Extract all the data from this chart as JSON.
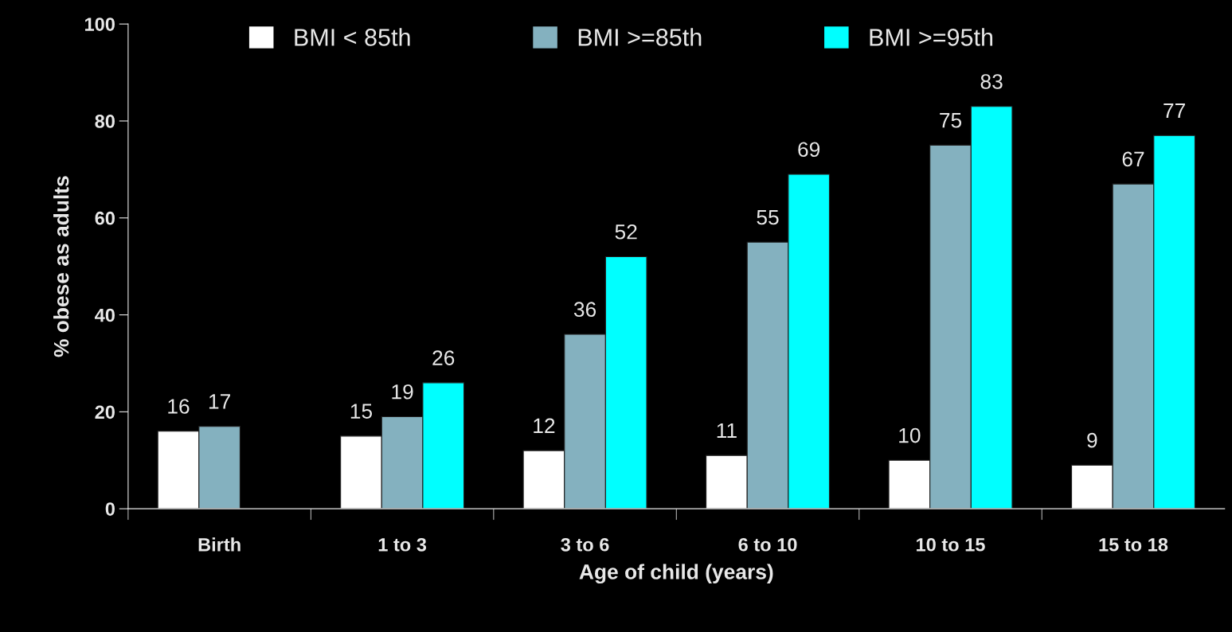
{
  "chart_data": {
    "type": "bar",
    "xlabel": "Age of child (years)",
    "ylabel": "% obese as adults",
    "categories": [
      "Birth",
      "1 to 3",
      "3 to 6",
      "6 to 10",
      "10 to 15",
      "15 to 18"
    ],
    "series": [
      {
        "name": "BMI < 85th",
        "color": "#ffffff",
        "values": [
          16,
          15,
          12,
          11,
          10,
          9
        ]
      },
      {
        "name": "BMI >=85th",
        "color": "#84b1bf",
        "values": [
          17,
          19,
          36,
          55,
          75,
          67
        ]
      },
      {
        "name": "BMI >=95th",
        "color": "#00ffff",
        "values": [
          null,
          26,
          52,
          69,
          83,
          77
        ]
      }
    ],
    "ylim": [
      0,
      100
    ],
    "yticks": [
      0,
      20,
      40,
      60,
      80,
      100
    ],
    "data_labels": true,
    "legend": "top",
    "grid": false
  }
}
